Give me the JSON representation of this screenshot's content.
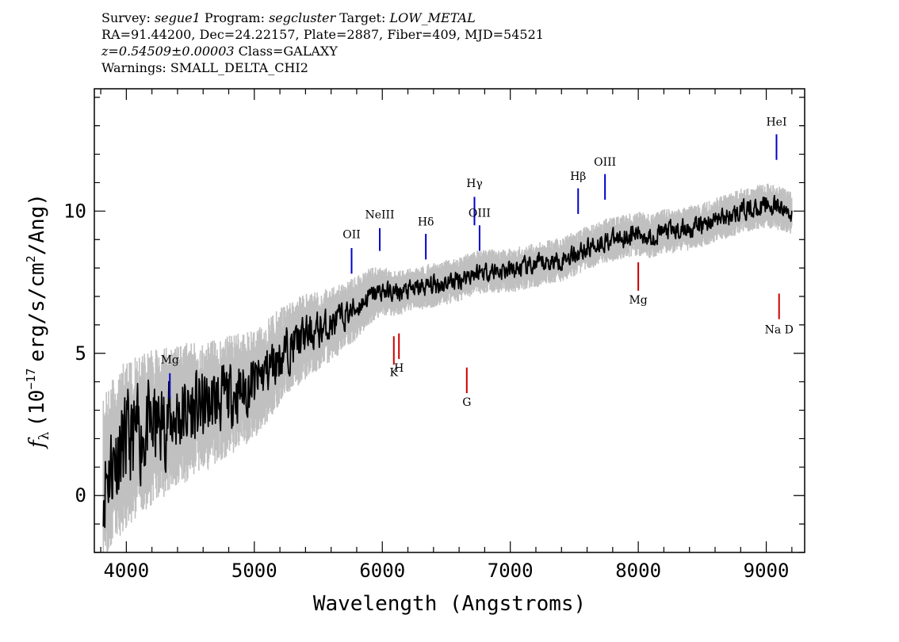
{
  "header": {
    "line1": {
      "survey_label": "Survey:",
      "survey": "segue1",
      "program_label": "Program:",
      "program": "segcluster",
      "target_label": "Target:",
      "target": "LOW_METAL"
    },
    "line2": "RA=91.44200, Dec=24.22157, Plate=2887, Fiber=409, MJD=54521",
    "line3": {
      "z": "z=0.54509±0.00003",
      "class": "Class=GALAXY"
    },
    "line4": "Warnings: SMALL_DELTA_CHI2"
  },
  "colors": {
    "flux": "#000000",
    "error": "#c0c0c0",
    "emission": "#0000cc",
    "absorption": "#cc0000"
  },
  "chart_data": {
    "type": "line",
    "xlabel": "Wavelength (Angstroms)",
    "ylabel": "f_λ (10^-17 erg/s/cm^2/Ang)",
    "ylabel_parts": {
      "f": "f",
      "sub": "λ",
      "pre": "(10",
      "exp": "−17",
      "mid": "erg/s/cm",
      "exp2": "2",
      "post": "/Ang)"
    },
    "xlim": [
      3750,
      9300
    ],
    "ylim": [
      -2,
      14.3
    ],
    "xticks": [
      4000,
      5000,
      6000,
      7000,
      8000,
      9000
    ],
    "xtick_labels": [
      "4000",
      "5000",
      "6000",
      "7000",
      "8000",
      "9000"
    ],
    "yticks": [
      0,
      5,
      10
    ],
    "ytick_labels": [
      "0",
      "5",
      "10"
    ],
    "grid": false,
    "series": [
      {
        "x": [
          3820,
          3900,
          4000,
          4100,
          4200,
          4300,
          4400,
          4500,
          4600,
          4700,
          4800,
          4900,
          5000,
          5100,
          5200,
          5300,
          5400,
          5500,
          5600,
          5700,
          5800,
          5900,
          6000,
          6100,
          6200,
          6300,
          6400,
          6500,
          6600,
          6700,
          6800,
          6900,
          7000,
          7100,
          7200,
          7300,
          7400,
          7500,
          7600,
          7700,
          7800,
          7900,
          8000,
          8100,
          8200,
          8300,
          8400,
          8500,
          8600,
          8700,
          8800,
          8900,
          9000,
          9100,
          9200
        ],
        "y": [
          0.5,
          1.3,
          1.8,
          2.1,
          2.4,
          2.6,
          2.8,
          3.0,
          3.1,
          3.3,
          3.5,
          3.7,
          3.9,
          4.4,
          4.9,
          5.3,
          5.6,
          5.8,
          6.0,
          6.3,
          6.6,
          7.0,
          7.2,
          7.1,
          7.2,
          7.3,
          7.4,
          7.5,
          7.6,
          7.8,
          7.9,
          7.9,
          7.9,
          8.0,
          8.1,
          8.2,
          8.3,
          8.5,
          8.7,
          8.9,
          9.0,
          9.1,
          9.2,
          9.1,
          9.3,
          9.3,
          9.4,
          9.5,
          9.7,
          9.8,
          10.0,
          10.1,
          10.2,
          10.1,
          9.9
        ]
      }
    ],
    "annotations": [
      {
        "text": "Mg",
        "x": 4340,
        "kind": "emission",
        "y1": 3.4,
        "y2": 4.3,
        "label_y": 4.65
      },
      {
        "text": "OII",
        "x": 5760,
        "kind": "emission",
        "y1": 7.8,
        "y2": 8.7,
        "label_y": 9.05
      },
      {
        "text": "NeIII",
        "x": 5980,
        "kind": "emission",
        "y1": 8.6,
        "y2": 9.4,
        "label_y": 9.75
      },
      {
        "text": "Hδ",
        "x": 6340,
        "kind": "emission",
        "y1": 8.3,
        "y2": 9.2,
        "label_y": 9.5
      },
      {
        "text": "Hγ",
        "x": 6720,
        "kind": "emission",
        "y1": 9.5,
        "y2": 10.5,
        "label_y": 10.85
      },
      {
        "text": "OIII",
        "x": 6760,
        "kind": "emission",
        "y1": 8.6,
        "y2": 9.5,
        "label_y": 9.8
      },
      {
        "text": "Hβ",
        "x": 7530,
        "kind": "emission",
        "y1": 9.9,
        "y2": 10.8,
        "label_y": 11.1
      },
      {
        "text": "OIII",
        "x": 7740,
        "kind": "emission",
        "y1": 10.4,
        "y2": 11.3,
        "label_y": 11.6
      },
      {
        "text": "HeI",
        "x": 9080,
        "kind": "emission",
        "y1": 11.8,
        "y2": 12.7,
        "label_y": 13.0
      },
      {
        "text": "K",
        "x": 6090,
        "kind": "absorption",
        "y1": 4.6,
        "y2": 5.6,
        "label_y": 4.2
      },
      {
        "text": "H",
        "x": 6130,
        "kind": "absorption",
        "y1": 4.8,
        "y2": 5.7,
        "label_y": 4.35
      },
      {
        "text": "G",
        "x": 6660,
        "kind": "absorption",
        "y1": 3.6,
        "y2": 4.5,
        "label_y": 3.15
      },
      {
        "text": "Mg",
        "x": 8000,
        "kind": "absorption",
        "y1": 7.2,
        "y2": 8.2,
        "label_y": 6.75
      },
      {
        "text": "Na D",
        "x": 9100,
        "kind": "absorption",
        "y1": 6.2,
        "y2": 7.1,
        "label_y": 5.7
      }
    ]
  }
}
